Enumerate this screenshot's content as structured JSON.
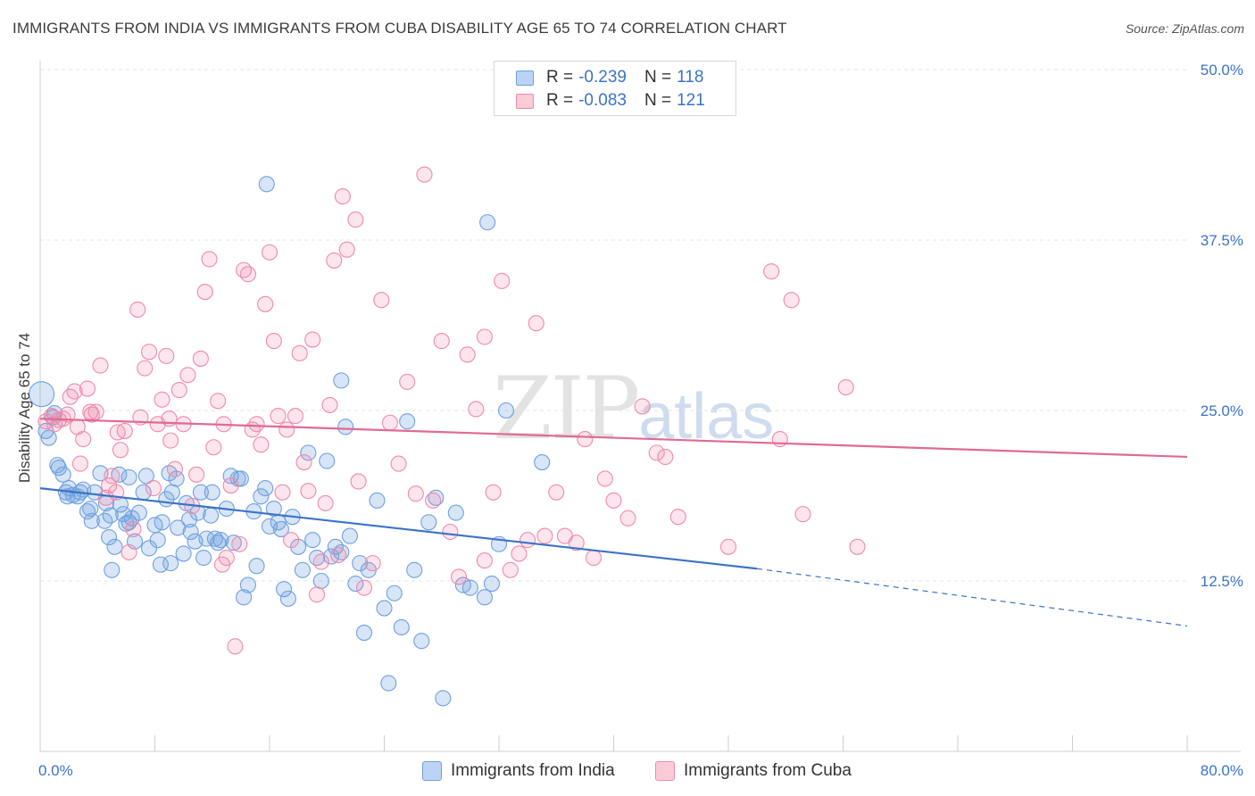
{
  "title": "IMMIGRANTS FROM INDIA VS IMMIGRANTS FROM CUBA DISABILITY AGE 65 TO 74 CORRELATION CHART",
  "source": "Source: ZipAtlas.com",
  "watermark": {
    "zip": "ZIP",
    "atlas": "atlas"
  },
  "legend": {
    "india": {
      "r_label": "R =",
      "r_value": "-0.239",
      "n_label": "N =",
      "n_value": "118",
      "color": "#6fa0e0"
    },
    "cuba": {
      "r_label": "R =",
      "r_value": "-0.083",
      "n_label": "N =",
      "n_value": "121",
      "color": "#f08aaa"
    }
  },
  "chart_data": {
    "type": "scatter",
    "xlabel": "",
    "ylabel": "Disability Age 65 to 74",
    "xlim": [
      0,
      80
    ],
    "ylim": [
      0,
      50
    ],
    "x_tick_labels": [
      "0.0%",
      "80.0%"
    ],
    "y_ticks": [
      12.5,
      25.0,
      37.5,
      50.0
    ],
    "y_tick_labels": [
      "12.5%",
      "25.0%",
      "37.5%",
      "50.0%"
    ],
    "grid": true,
    "legend_position": "top-center",
    "series": [
      {
        "name": "Immigrants from India",
        "color": "#6fa0e0",
        "trend": {
          "x0": 0,
          "y0": 19.3,
          "x1": 50,
          "y1": 13.4,
          "dashed_to_x": 80,
          "dashed_y": 9.2
        },
        "points": [
          [
            0.1,
            26.2
          ],
          [
            0.6,
            23.0
          ],
          [
            0.9,
            24.5
          ],
          [
            1.2,
            21.0
          ],
          [
            1.3,
            20.8
          ],
          [
            1.6,
            20.3
          ],
          [
            1.9,
            18.7
          ],
          [
            2.0,
            19.3
          ],
          [
            2.3,
            18.8
          ],
          [
            2.8,
            19.0
          ],
          [
            3.0,
            19.2
          ],
          [
            3.3,
            17.6
          ],
          [
            3.5,
            17.8
          ],
          [
            3.8,
            19.0
          ],
          [
            4.2,
            20.4
          ],
          [
            4.5,
            16.9
          ],
          [
            4.6,
            18.2
          ],
          [
            4.8,
            15.7
          ],
          [
            4.9,
            17.3
          ],
          [
            5.2,
            15.0
          ],
          [
            5.5,
            20.3
          ],
          [
            5.6,
            18.1
          ],
          [
            5.8,
            17.4
          ],
          [
            6.0,
            16.7
          ],
          [
            6.2,
            20.1
          ],
          [
            6.4,
            17.1
          ],
          [
            6.6,
            15.4
          ],
          [
            6.9,
            17.5
          ],
          [
            7.2,
            19.0
          ],
          [
            7.4,
            20.2
          ],
          [
            7.6,
            14.9
          ],
          [
            8.0,
            16.6
          ],
          [
            8.2,
            15.5
          ],
          [
            8.5,
            16.8
          ],
          [
            8.8,
            18.5
          ],
          [
            9.0,
            20.4
          ],
          [
            9.1,
            13.8
          ],
          [
            9.2,
            19.0
          ],
          [
            9.5,
            20.0
          ],
          [
            9.6,
            16.4
          ],
          [
            10.0,
            14.5
          ],
          [
            10.2,
            18.2
          ],
          [
            10.4,
            17.0
          ],
          [
            10.8,
            15.4
          ],
          [
            11.0,
            17.5
          ],
          [
            11.2,
            19.0
          ],
          [
            11.4,
            14.2
          ],
          [
            11.6,
            15.6
          ],
          [
            11.9,
            17.3
          ],
          [
            12.2,
            15.6
          ],
          [
            12.4,
            15.3
          ],
          [
            12.6,
            15.5
          ],
          [
            13.0,
            17.8
          ],
          [
            13.3,
            20.2
          ],
          [
            13.5,
            15.3
          ],
          [
            13.8,
            20.0
          ],
          [
            14.2,
            11.3
          ],
          [
            14.5,
            12.2
          ],
          [
            14.9,
            17.6
          ],
          [
            15.1,
            13.6
          ],
          [
            15.4,
            18.7
          ],
          [
            15.7,
            19.3
          ],
          [
            16.0,
            16.5
          ],
          [
            16.3,
            17.8
          ],
          [
            16.6,
            16.8
          ],
          [
            17.0,
            11.9
          ],
          [
            17.3,
            11.2
          ],
          [
            17.6,
            17.2
          ],
          [
            18.0,
            15.0
          ],
          [
            18.3,
            13.3
          ],
          [
            18.7,
            21.9
          ],
          [
            19.0,
            15.5
          ],
          [
            19.3,
            14.2
          ],
          [
            19.6,
            12.5
          ],
          [
            20.0,
            21.3
          ],
          [
            20.3,
            14.3
          ],
          [
            20.6,
            15.0
          ],
          [
            21.0,
            27.2
          ],
          [
            21.3,
            23.8
          ],
          [
            21.6,
            15.8
          ],
          [
            22.0,
            12.3
          ],
          [
            22.3,
            13.8
          ],
          [
            22.6,
            8.7
          ],
          [
            22.9,
            13.3
          ],
          [
            23.5,
            18.4
          ],
          [
            24.0,
            10.5
          ],
          [
            24.3,
            5.0
          ],
          [
            24.7,
            11.6
          ],
          [
            25.2,
            9.1
          ],
          [
            25.6,
            24.2
          ],
          [
            26.1,
            13.3
          ],
          [
            26.6,
            8.1
          ],
          [
            27.1,
            16.8
          ],
          [
            27.6,
            18.6
          ],
          [
            28.1,
            3.9
          ],
          [
            29.0,
            17.5
          ],
          [
            29.5,
            12.2
          ],
          [
            30.0,
            12.0
          ],
          [
            31.0,
            11.3
          ],
          [
            31.5,
            12.3
          ],
          [
            32.0,
            15.2
          ],
          [
            32.5,
            25.0
          ],
          [
            35.0,
            21.2
          ],
          [
            15.8,
            41.6
          ],
          [
            31.2,
            38.8
          ],
          [
            6.2,
            16.8
          ],
          [
            3.6,
            16.9
          ],
          [
            1.8,
            19.0
          ],
          [
            2.6,
            18.7
          ],
          [
            10.5,
            16.1
          ],
          [
            14.0,
            20.0
          ],
          [
            16.8,
            16.3
          ],
          [
            21.0,
            14.6
          ],
          [
            8.4,
            13.7
          ],
          [
            12.0,
            19.0
          ],
          [
            5.0,
            13.3
          ],
          [
            1.0,
            24.8
          ],
          [
            0.4,
            23.5
          ]
        ]
      },
      {
        "name": "Immigrants from Cuba",
        "color": "#f08aaa",
        "trend": {
          "x0": 0,
          "y0": 24.4,
          "x1": 80,
          "y1": 21.6
        },
        "points": [
          [
            0.4,
            24.2
          ],
          [
            0.8,
            24.6
          ],
          [
            1.0,
            24.0
          ],
          [
            1.3,
            24.3
          ],
          [
            1.6,
            24.4
          ],
          [
            1.9,
            24.7
          ],
          [
            2.1,
            26.0
          ],
          [
            2.4,
            26.4
          ],
          [
            2.6,
            23.8
          ],
          [
            2.8,
            21.1
          ],
          [
            3.0,
            22.9
          ],
          [
            3.3,
            26.6
          ],
          [
            3.6,
            24.7
          ],
          [
            3.9,
            24.9
          ],
          [
            4.2,
            28.3
          ],
          [
            4.6,
            18.6
          ],
          [
            4.8,
            19.5
          ],
          [
            5.0,
            20.2
          ],
          [
            5.3,
            19.0
          ],
          [
            5.6,
            22.1
          ],
          [
            5.9,
            23.5
          ],
          [
            6.2,
            14.6
          ],
          [
            6.5,
            16.3
          ],
          [
            6.8,
            32.4
          ],
          [
            7.0,
            24.5
          ],
          [
            7.3,
            28.1
          ],
          [
            7.6,
            29.3
          ],
          [
            7.9,
            19.3
          ],
          [
            8.2,
            24.0
          ],
          [
            8.5,
            25.8
          ],
          [
            8.8,
            29.0
          ],
          [
            9.1,
            22.8
          ],
          [
            9.4,
            20.7
          ],
          [
            9.7,
            26.5
          ],
          [
            10.0,
            24.0
          ],
          [
            10.3,
            27.6
          ],
          [
            10.6,
            18.0
          ],
          [
            10.9,
            20.3
          ],
          [
            11.2,
            28.8
          ],
          [
            11.5,
            33.7
          ],
          [
            11.8,
            36.1
          ],
          [
            12.1,
            22.3
          ],
          [
            12.4,
            25.7
          ],
          [
            12.7,
            13.7
          ],
          [
            13.0,
            14.2
          ],
          [
            13.3,
            19.5
          ],
          [
            13.6,
            7.7
          ],
          [
            13.9,
            15.2
          ],
          [
            14.2,
            35.3
          ],
          [
            14.5,
            35.0
          ],
          [
            14.8,
            23.6
          ],
          [
            15.1,
            24.0
          ],
          [
            15.4,
            22.5
          ],
          [
            15.7,
            32.8
          ],
          [
            16.0,
            36.6
          ],
          [
            16.3,
            30.1
          ],
          [
            16.6,
            24.6
          ],
          [
            16.9,
            19.0
          ],
          [
            17.2,
            23.6
          ],
          [
            17.5,
            15.5
          ],
          [
            17.8,
            24.6
          ],
          [
            18.1,
            29.2
          ],
          [
            18.4,
            21.2
          ],
          [
            18.7,
            19.1
          ],
          [
            19.0,
            30.2
          ],
          [
            19.3,
            11.5
          ],
          [
            19.6,
            13.9
          ],
          [
            19.9,
            18.2
          ],
          [
            20.2,
            25.4
          ],
          [
            20.5,
            36.0
          ],
          [
            20.8,
            14.4
          ],
          [
            21.1,
            40.7
          ],
          [
            21.4,
            36.8
          ],
          [
            22.0,
            39.0
          ],
          [
            22.6,
            12.0
          ],
          [
            23.2,
            13.8
          ],
          [
            23.8,
            33.1
          ],
          [
            24.4,
            24.1
          ],
          [
            25.0,
            21.1
          ],
          [
            25.6,
            27.1
          ],
          [
            26.2,
            18.9
          ],
          [
            26.8,
            42.3
          ],
          [
            27.4,
            18.4
          ],
          [
            28.0,
            30.1
          ],
          [
            28.6,
            16.1
          ],
          [
            29.2,
            12.8
          ],
          [
            29.8,
            29.1
          ],
          [
            30.4,
            25.1
          ],
          [
            31.0,
            14.0
          ],
          [
            31.6,
            19.0
          ],
          [
            32.2,
            34.5
          ],
          [
            32.8,
            13.3
          ],
          [
            33.4,
            14.5
          ],
          [
            34.0,
            15.5
          ],
          [
            34.6,
            31.4
          ],
          [
            35.2,
            15.8
          ],
          [
            36.0,
            19.0
          ],
          [
            36.6,
            15.8
          ],
          [
            37.4,
            15.3
          ],
          [
            38.0,
            22.9
          ],
          [
            38.6,
            14.2
          ],
          [
            39.4,
            20.0
          ],
          [
            40.0,
            18.4
          ],
          [
            41.0,
            17.1
          ],
          [
            42.0,
            25.3
          ],
          [
            43.0,
            21.9
          ],
          [
            43.6,
            21.6
          ],
          [
            44.5,
            17.2
          ],
          [
            48.0,
            15.0
          ],
          [
            51.0,
            35.2
          ],
          [
            51.6,
            22.9
          ],
          [
            52.4,
            33.1
          ],
          [
            53.2,
            17.4
          ],
          [
            56.2,
            26.7
          ],
          [
            57.0,
            15.0
          ],
          [
            31.0,
            30.4
          ],
          [
            22.2,
            19.8
          ],
          [
            12.8,
            24.0
          ],
          [
            9.0,
            24.4
          ],
          [
            5.4,
            23.4
          ],
          [
            3.5,
            24.9
          ]
        ]
      }
    ]
  }
}
